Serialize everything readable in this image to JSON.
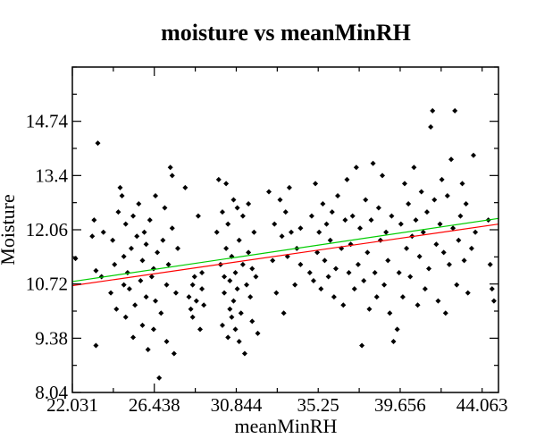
{
  "chart_data": {
    "type": "scatter",
    "title": "moisture vs meanMinRH",
    "xlabel": "meanMinRH",
    "ylabel": "Moisture",
    "xlim": [
      22.031,
      44.945
    ],
    "ylim": [
      8.04,
      16.08
    ],
    "xticks": [
      22.031,
      26.438,
      30.844,
      35.25,
      39.656,
      44.063
    ],
    "xtick_labels": [
      "22.031",
      "26.438",
      "30.844",
      "35.25",
      "39.656",
      "44.063"
    ],
    "yticks": [
      8.04,
      9.38,
      10.72,
      12.06,
      13.4,
      14.74
    ],
    "ytick_labels": [
      "8.04",
      "9.38",
      "10.72",
      "12.06",
      "13.4",
      "14.74"
    ],
    "grid": false,
    "legend": "none",
    "marker_color": "#000000",
    "fit_lines": [
      {
        "color": "#ff0000",
        "x": [
          22.031,
          44.945
        ],
        "y": [
          10.68,
          12.2
        ]
      },
      {
        "color": "#00cc00",
        "x": [
          22.031,
          44.945
        ],
        "y": [
          10.78,
          12.34
        ]
      }
    ],
    "points": [
      [
        22.2,
        11.35
      ],
      [
        23.1,
        11.9
      ],
      [
        23.2,
        12.3
      ],
      [
        23.3,
        9.2
      ],
      [
        23.3,
        11.05
      ],
      [
        23.4,
        14.2
      ],
      [
        23.6,
        10.9
      ],
      [
        23.7,
        12.0
      ],
      [
        24.1,
        10.5
      ],
      [
        24.2,
        11.8
      ],
      [
        24.3,
        11.2
      ],
      [
        24.4,
        10.1
      ],
      [
        24.5,
        12.5
      ],
      [
        24.6,
        13.1
      ],
      [
        24.7,
        12.9
      ],
      [
        24.8,
        10.7
      ],
      [
        24.8,
        11.4
      ],
      [
        24.9,
        12.2
      ],
      [
        24.9,
        9.9
      ],
      [
        25.0,
        11.0
      ],
      [
        25.1,
        10.6
      ],
      [
        25.2,
        11.6
      ],
      [
        25.3,
        12.4
      ],
      [
        25.3,
        9.4
      ],
      [
        25.4,
        10.2
      ],
      [
        25.5,
        11.9
      ],
      [
        25.6,
        12.7
      ],
      [
        25.7,
        10.8
      ],
      [
        25.8,
        11.3
      ],
      [
        25.8,
        9.7
      ],
      [
        25.9,
        12.0
      ],
      [
        26.0,
        10.4
      ],
      [
        26.0,
        11.7
      ],
      [
        26.1,
        9.1
      ],
      [
        26.2,
        12.3
      ],
      [
        26.3,
        10.9
      ],
      [
        26.4,
        11.1
      ],
      [
        26.4,
        9.6
      ],
      [
        26.5,
        12.9
      ],
      [
        26.5,
        10.3
      ],
      [
        26.6,
        11.5
      ],
      [
        26.7,
        8.4
      ],
      [
        26.8,
        10.0
      ],
      [
        26.9,
        11.8
      ],
      [
        27.0,
        12.6
      ],
      [
        27.1,
        9.3
      ],
      [
        27.1,
        10.7
      ],
      [
        27.2,
        11.2
      ],
      [
        27.3,
        13.6
      ],
      [
        27.4,
        13.4
      ],
      [
        27.4,
        12.1
      ],
      [
        27.5,
        9.0
      ],
      [
        27.6,
        10.5
      ],
      [
        27.7,
        11.6
      ],
      [
        28.1,
        13.1
      ],
      [
        28.3,
        10.4
      ],
      [
        28.4,
        10.1
      ],
      [
        28.5,
        10.7
      ],
      [
        28.5,
        9.9
      ],
      [
        28.6,
        10.9
      ],
      [
        28.7,
        10.3
      ],
      [
        28.8,
        12.4
      ],
      [
        28.9,
        9.6
      ],
      [
        29.0,
        10.6
      ],
      [
        29.0,
        11.0
      ],
      [
        29.1,
        10.2
      ],
      [
        29.8,
        12.0
      ],
      [
        29.9,
        13.3
      ],
      [
        30.0,
        11.2
      ],
      [
        30.1,
        9.7
      ],
      [
        30.1,
        12.5
      ],
      [
        30.2,
        10.5
      ],
      [
        30.2,
        10.9
      ],
      [
        30.3,
        13.2
      ],
      [
        30.3,
        11.6
      ],
      [
        30.4,
        9.4
      ],
      [
        30.4,
        12.2
      ],
      [
        30.5,
        10.1
      ],
      [
        30.5,
        10.8
      ],
      [
        30.6,
        9.9
      ],
      [
        30.6,
        11.4
      ],
      [
        30.7,
        12.8
      ],
      [
        30.7,
        10.3
      ],
      [
        30.8,
        9.6
      ],
      [
        30.8,
        11.0
      ],
      [
        30.9,
        12.6
      ],
      [
        30.9,
        10.6
      ],
      [
        31.0,
        11.8
      ],
      [
        31.0,
        9.3
      ],
      [
        31.1,
        10.0
      ],
      [
        31.2,
        12.4
      ],
      [
        31.2,
        11.2
      ],
      [
        31.3,
        9.0
      ],
      [
        31.4,
        10.7
      ],
      [
        31.5,
        12.7
      ],
      [
        31.5,
        11.5
      ],
      [
        31.6,
        10.4
      ],
      [
        31.7,
        9.8
      ],
      [
        31.7,
        11.1
      ],
      [
        31.8,
        12.0
      ],
      [
        31.9,
        10.9
      ],
      [
        32.0,
        9.5
      ],
      [
        32.6,
        13.0
      ],
      [
        32.8,
        11.3
      ],
      [
        32.9,
        12.2
      ],
      [
        33.0,
        10.5
      ],
      [
        33.2,
        12.8
      ],
      [
        33.3,
        11.9
      ],
      [
        33.4,
        10.0
      ],
      [
        33.5,
        12.5
      ],
      [
        33.6,
        11.4
      ],
      [
        33.7,
        13.1
      ],
      [
        33.8,
        12.0
      ],
      [
        34.0,
        10.7
      ],
      [
        34.1,
        11.6
      ],
      [
        34.3,
        11.2
      ],
      [
        34.3,
        12.1
      ],
      [
        34.8,
        11.0
      ],
      [
        34.9,
        12.4
      ],
      [
        35.0,
        10.8
      ],
      [
        35.1,
        13.2
      ],
      [
        35.2,
        11.5
      ],
      [
        35.3,
        12.0
      ],
      [
        35.4,
        10.6
      ],
      [
        35.5,
        12.7
      ],
      [
        35.6,
        11.3
      ],
      [
        35.7,
        12.2
      ],
      [
        35.8,
        10.9
      ],
      [
        35.9,
        11.8
      ],
      [
        36.0,
        12.5
      ],
      [
        36.1,
        10.4
      ],
      [
        36.2,
        11.1
      ],
      [
        36.3,
        12.9
      ],
      [
        36.5,
        11.6
      ],
      [
        36.6,
        10.2
      ],
      [
        36.7,
        12.3
      ],
      [
        36.8,
        13.3
      ],
      [
        36.9,
        11.0
      ],
      [
        37.0,
        11.7
      ],
      [
        37.1,
        12.4
      ],
      [
        37.2,
        10.6
      ],
      [
        37.3,
        13.6
      ],
      [
        37.4,
        11.2
      ],
      [
        37.5,
        12.1
      ],
      [
        37.6,
        9.2
      ],
      [
        37.7,
        10.8
      ],
      [
        37.8,
        12.8
      ],
      [
        37.9,
        11.5
      ],
      [
        38.0,
        10.1
      ],
      [
        38.1,
        12.3
      ],
      [
        38.2,
        13.7
      ],
      [
        38.3,
        11.0
      ],
      [
        38.4,
        10.4
      ],
      [
        38.5,
        12.6
      ],
      [
        38.6,
        11.8
      ],
      [
        38.7,
        13.4
      ],
      [
        38.8,
        10.7
      ],
      [
        38.9,
        12.0
      ],
      [
        39.0,
        11.3
      ],
      [
        39.1,
        10.0
      ],
      [
        39.2,
        12.4
      ],
      [
        39.3,
        9.3
      ],
      [
        39.5,
        9.6
      ],
      [
        39.6,
        11.0
      ],
      [
        39.7,
        12.2
      ],
      [
        39.8,
        10.4
      ],
      [
        39.9,
        13.2
      ],
      [
        40.0,
        11.6
      ],
      [
        40.1,
        12.7
      ],
      [
        40.2,
        10.9
      ],
      [
        40.3,
        11.9
      ],
      [
        40.4,
        13.6
      ],
      [
        40.5,
        12.3
      ],
      [
        40.6,
        10.2
      ],
      [
        40.7,
        11.4
      ],
      [
        40.8,
        13.0
      ],
      [
        40.9,
        12.0
      ],
      [
        41.0,
        10.6
      ],
      [
        41.1,
        12.5
      ],
      [
        41.2,
        11.1
      ],
      [
        41.3,
        14.6
      ],
      [
        41.4,
        15.0
      ],
      [
        41.5,
        12.8
      ],
      [
        41.6,
        11.7
      ],
      [
        41.7,
        10.3
      ],
      [
        41.8,
        12.2
      ],
      [
        41.9,
        13.3
      ],
      [
        42.0,
        11.5
      ],
      [
        42.1,
        10.0
      ],
      [
        42.2,
        12.9
      ],
      [
        42.3,
        11.2
      ],
      [
        42.4,
        13.8
      ],
      [
        42.5,
        12.1
      ],
      [
        42.6,
        15.0
      ],
      [
        42.7,
        10.7
      ],
      [
        42.8,
        11.8
      ],
      [
        42.9,
        12.4
      ],
      [
        43.0,
        13.2
      ],
      [
        43.1,
        11.3
      ],
      [
        43.2,
        12.7
      ],
      [
        43.3,
        10.5
      ],
      [
        43.5,
        11.6
      ],
      [
        43.6,
        13.9
      ],
      [
        43.7,
        12.0
      ],
      [
        44.4,
        12.3
      ],
      [
        44.5,
        11.2
      ],
      [
        44.6,
        10.6
      ],
      [
        44.7,
        10.3
      ]
    ]
  }
}
